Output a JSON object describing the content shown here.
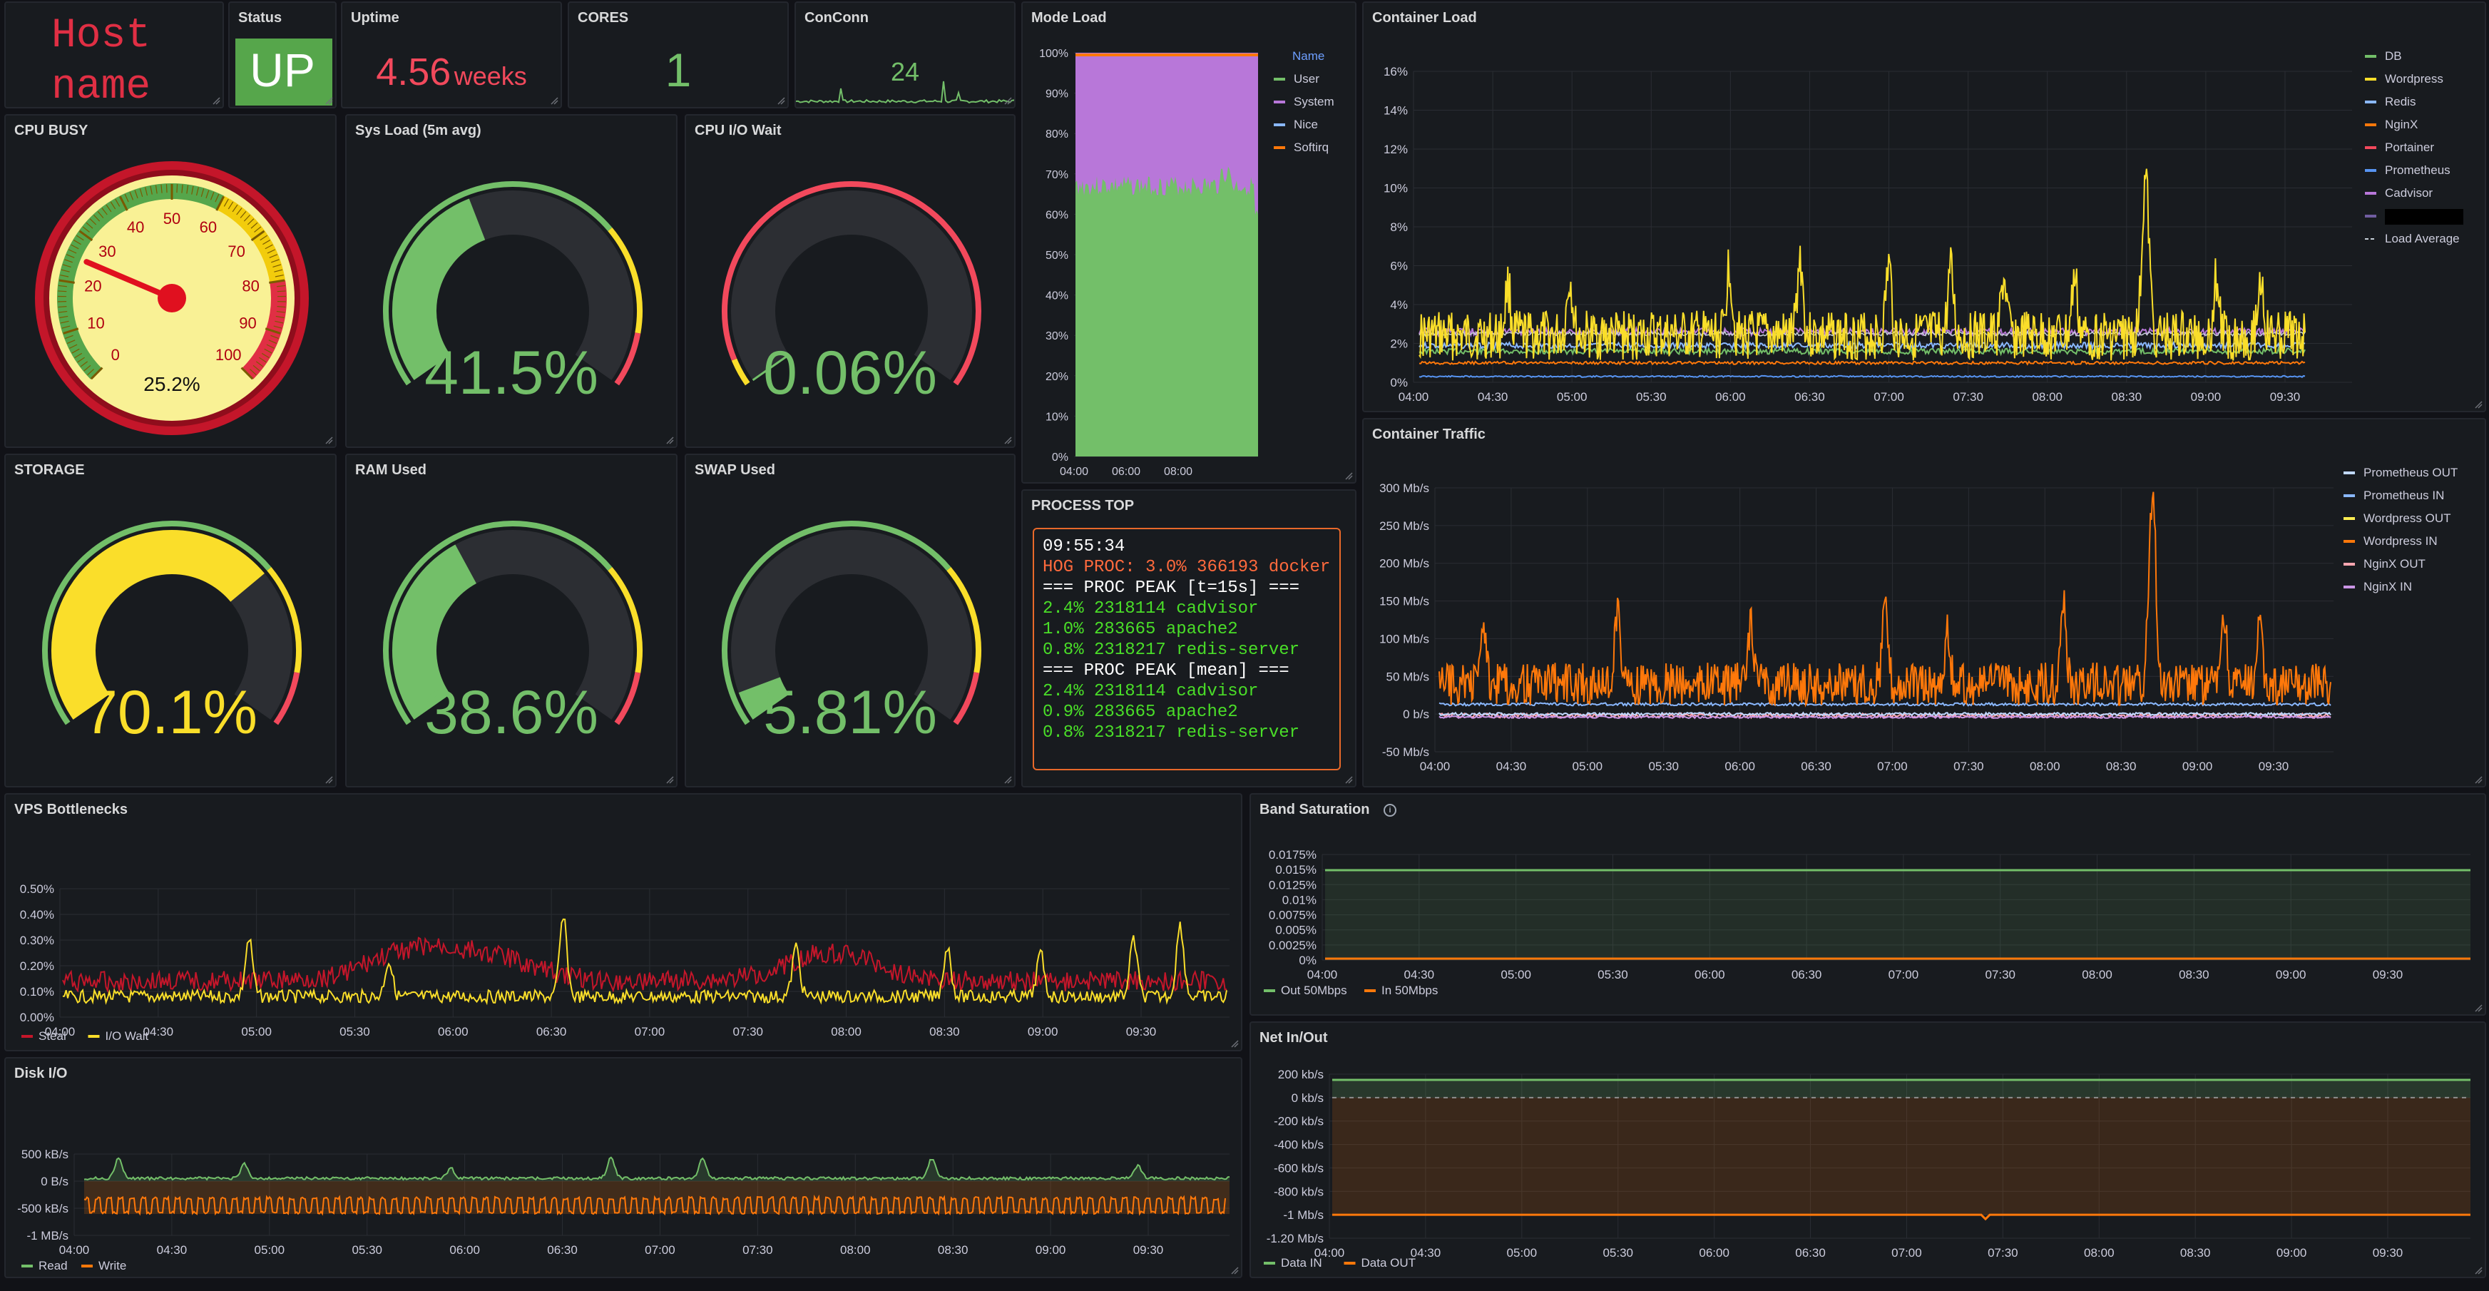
{
  "colors": {
    "green": "#73bf69",
    "yellow": "#fade2a",
    "red": "#f2495c",
    "orange": "#ff780a",
    "purple": "#b877d9",
    "blue": "#8ab8ff",
    "bg": "#181b1f",
    "border": "#24272e",
    "text": "#ccccdc",
    "gridline": "#2a2d33"
  },
  "hostname": {
    "line1": "Host",
    "line2": "name"
  },
  "status": {
    "title": "Status",
    "value": "UP"
  },
  "uptime": {
    "title": "Uptime",
    "value": "4.56",
    "unit": "weeks"
  },
  "cores": {
    "title": "CORES",
    "value": "1"
  },
  "conconn": {
    "title": "ConConn",
    "value": "24"
  },
  "cpu_busy": {
    "title": "CPU BUSY",
    "value": "25.2%",
    "percent": 25.2,
    "ticks": [
      "0",
      "10",
      "20",
      "30",
      "40",
      "50",
      "60",
      "70",
      "80",
      "90",
      "100"
    ]
  },
  "sys_load": {
    "title": "Sys Load (5m avg)",
    "value": "41.5%",
    "percent": 41.5
  },
  "cpu_iowait": {
    "title": "CPU I/O Wait",
    "value": "0.06%",
    "percent": 0.06
  },
  "storage": {
    "title": "STORAGE",
    "value": "70.1%",
    "percent": 70.1
  },
  "ram": {
    "title": "RAM Used",
    "value": "38.6%",
    "percent": 38.6
  },
  "swap": {
    "title": "SWAP Used",
    "value": "5.81%",
    "percent": 5.81
  },
  "mode_load": {
    "title": "Mode Load",
    "legend_header": "Name",
    "legend": [
      {
        "name": "User",
        "color": "#73bf69"
      },
      {
        "name": "System",
        "color": "#b877d9"
      },
      {
        "name": "Nice",
        "color": "#8ab8ff"
      },
      {
        "name": "Softirq",
        "color": "#ff780a"
      }
    ],
    "y_ticks": [
      "100%",
      "90%",
      "80%",
      "70%",
      "60%",
      "50%",
      "40%",
      "30%",
      "20%",
      "10%",
      "0%"
    ],
    "x_ticks": [
      "04:00",
      "06:00",
      "08:00"
    ]
  },
  "process_top": {
    "title": "PROCESS TOP",
    "lines": [
      {
        "text": "09:55:34",
        "color": "#ffffff"
      },
      {
        "text": "HOG PROC: 3.0% 366193 docker",
        "color": "#ff6a3d"
      },
      {
        "text": "=== PROC PEAK [t=15s] ===",
        "color": "#ffffff"
      },
      {
        "text": "2.4% 2318114 cadvisor",
        "color": "#4ade28"
      },
      {
        "text": "1.0% 283665 apache2",
        "color": "#4ade28"
      },
      {
        "text": "0.8% 2318217 redis-server",
        "color": "#4ade28"
      },
      {
        "text": "=== PROC PEAK [mean] ===",
        "color": "#ffffff"
      },
      {
        "text": "2.4% 2318114 cadvisor",
        "color": "#4ade28"
      },
      {
        "text": "0.9% 283665 apache2",
        "color": "#4ade28"
      },
      {
        "text": "0.8% 2318217 redis-server",
        "color": "#4ade28"
      }
    ]
  },
  "container_load": {
    "title": "Container Load",
    "y_ticks": [
      "16%",
      "14%",
      "12%",
      "10%",
      "8%",
      "6%",
      "4%",
      "2%",
      "0%"
    ],
    "x_ticks": [
      "04:00",
      "04:30",
      "05:00",
      "05:30",
      "06:00",
      "06:30",
      "07:00",
      "07:30",
      "08:00",
      "08:30",
      "09:00",
      "09:30"
    ],
    "legend": [
      {
        "name": "DB",
        "color": "#73bf69"
      },
      {
        "name": "Wordpress",
        "color": "#fade2a"
      },
      {
        "name": "Redis",
        "color": "#8ab8ff"
      },
      {
        "name": "NginX",
        "color": "#ff780a"
      },
      {
        "name": "Portainer",
        "color": "#f2495c"
      },
      {
        "name": "Prometheus",
        "color": "#5794f2"
      },
      {
        "name": "Cadvisor",
        "color": "#b877d9"
      },
      {
        "name": "",
        "color": "#705da0"
      },
      {
        "name": "Load Average",
        "color": "#c7d0d9"
      }
    ]
  },
  "container_traffic": {
    "title": "Container Traffic",
    "y_ticks": [
      "300 Mb/s",
      "250 Mb/s",
      "200 Mb/s",
      "150 Mb/s",
      "100 Mb/s",
      "50 Mb/s",
      "0 b/s",
      "-50 Mb/s"
    ],
    "x_ticks": [
      "04:00",
      "04:30",
      "05:00",
      "05:30",
      "06:00",
      "06:30",
      "07:00",
      "07:30",
      "08:00",
      "08:30",
      "09:00",
      "09:30"
    ],
    "legend": [
      {
        "name": "Prometheus OUT",
        "color": "#c0d8ff"
      },
      {
        "name": "Prometheus IN",
        "color": "#8ab8ff"
      },
      {
        "name": "Wordpress OUT",
        "color": "#ffee52"
      },
      {
        "name": "Wordpress IN",
        "color": "#ff780a"
      },
      {
        "name": "NginX OUT",
        "color": "#ffa6b0"
      },
      {
        "name": "NginX IN",
        "color": "#ca95e5"
      }
    ]
  },
  "vps_bottlenecks": {
    "title": "VPS Bottlenecks",
    "y_ticks": [
      "0.50%",
      "0.40%",
      "0.30%",
      "0.20%",
      "0.10%",
      "0.00%"
    ],
    "x_ticks": [
      "04:00",
      "04:30",
      "05:00",
      "05:30",
      "06:00",
      "06:30",
      "07:00",
      "07:30",
      "08:00",
      "08:30",
      "09:00",
      "09:30"
    ],
    "legend": [
      {
        "name": "Steal",
        "color": "#c4162a"
      },
      {
        "name": "I/O Wait",
        "color": "#fade2a"
      }
    ]
  },
  "band_saturation": {
    "title": "Band Saturation",
    "y_ticks": [
      "0.0175%",
      "0.015%",
      "0.0125%",
      "0.01%",
      "0.0075%",
      "0.005%",
      "0.0025%",
      "0%"
    ],
    "x_ticks": [
      "04:00",
      "04:30",
      "05:00",
      "05:30",
      "06:00",
      "06:30",
      "07:00",
      "07:30",
      "08:00",
      "08:30",
      "09:00",
      "09:30"
    ],
    "legend": [
      {
        "name": "Out 50Mbps",
        "color": "#73bf69"
      },
      {
        "name": "In 50Mbps",
        "color": "#ff780a"
      }
    ]
  },
  "disk_io": {
    "title": "Disk I/O",
    "y_ticks": [
      "500 kB/s",
      "0 B/s",
      "-500 kB/s",
      "-1 MB/s"
    ],
    "x_ticks": [
      "04:00",
      "04:30",
      "05:00",
      "05:30",
      "06:00",
      "06:30",
      "07:00",
      "07:30",
      "08:00",
      "08:30",
      "09:00",
      "09:30"
    ],
    "legend": [
      {
        "name": "Read",
        "color": "#73bf69"
      },
      {
        "name": "Write",
        "color": "#ff780a"
      }
    ]
  },
  "net_inout": {
    "title": "Net In/Out",
    "y_ticks": [
      "200 kb/s",
      "0 kb/s",
      "-200 kb/s",
      "-400 kb/s",
      "-600 kb/s",
      "-800 kb/s",
      "-1 Mb/s",
      "-1.20 Mb/s"
    ],
    "x_ticks": [
      "04:00",
      "04:30",
      "05:00",
      "05:30",
      "06:00",
      "06:30",
      "07:00",
      "07:30",
      "08:00",
      "08:30",
      "09:00",
      "09:30"
    ],
    "legend": [
      {
        "name": "Data IN",
        "color": "#73bf69"
      },
      {
        "name": "Data OUT",
        "color": "#ff780a"
      }
    ]
  }
}
